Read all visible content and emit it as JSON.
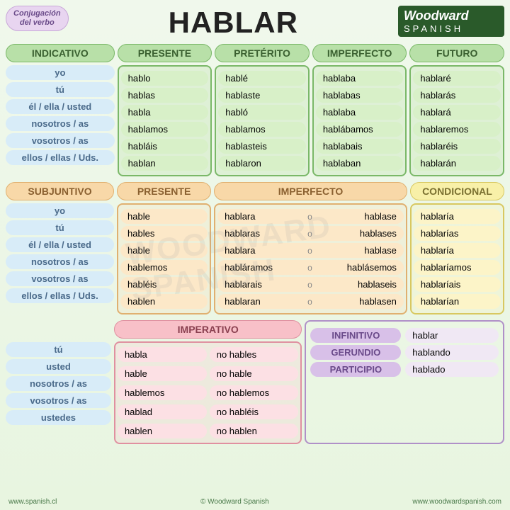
{
  "badge_line1": "Conjugación",
  "badge_line2": "del verbo",
  "title": "HABLAR",
  "logo_brand": "Woodward",
  "logo_sub": "SPANISH",
  "watermark": "WOODWARD SPANISH",
  "pronouns6": [
    "yo",
    "tú",
    "él / ella / usted",
    "nosotros / as",
    "vosotros / as",
    "ellos / ellas / Uds."
  ],
  "pronouns5": [
    "tú",
    "usted",
    "nosotros / as",
    "vosotros / as",
    "ustedes"
  ],
  "headers": {
    "indicativo": "INDICATIVO",
    "presente": "PRESENTE",
    "preterito": "PRETÉRITO",
    "imperfecto": "IMPERFECTO",
    "futuro": "FUTURO",
    "subjuntivo": "SUBJUNTIVO",
    "condicional": "CONDICIONAL",
    "imperativo": "IMPERATIVO",
    "infinitivo": "INFINITIVO",
    "gerundio": "GERUNDIO",
    "participio": "PARTICIPIO"
  },
  "ind": {
    "presente": [
      "hablo",
      "hablas",
      "habla",
      "hablamos",
      "habláis",
      "hablan"
    ],
    "preterito": [
      "hablé",
      "hablaste",
      "habló",
      "hablamos",
      "hablasteis",
      "hablaron"
    ],
    "imperfecto": [
      "hablaba",
      "hablabas",
      "hablaba",
      "hablábamos",
      "hablabais",
      "hablaban"
    ],
    "futuro": [
      "hablaré",
      "hablarás",
      "hablará",
      "hablaremos",
      "hablaréis",
      "hablarán"
    ]
  },
  "subj": {
    "presente": [
      "hable",
      "hables",
      "hable",
      "hablemos",
      "habléis",
      "hablen"
    ],
    "imp_a": [
      "hablara",
      "hablaras",
      "hablara",
      "habláramos",
      "hablarais",
      "hablaran"
    ],
    "imp_b": [
      "hablase",
      "hablases",
      "hablase",
      "hablásemos",
      "hablaseis",
      "hablasen"
    ]
  },
  "condicional": [
    "hablaría",
    "hablarías",
    "hablaría",
    "hablaríamos",
    "hablaríais",
    "hablarían"
  ],
  "imperativo": {
    "pos": [
      "habla",
      "hable",
      "hablemos",
      "hablad",
      "hablen"
    ],
    "neg": [
      "no hables",
      "no hable",
      "no hablemos",
      "no habléis",
      "no hablen"
    ]
  },
  "nonfinite": {
    "infinitivo": "hablar",
    "gerundio": "hablando",
    "participio": "hablado"
  },
  "footer": {
    "left": "www.spanish.cl",
    "center": "© Woodward Spanish",
    "right": "www.woodwardspanish.com"
  },
  "sep": "o"
}
